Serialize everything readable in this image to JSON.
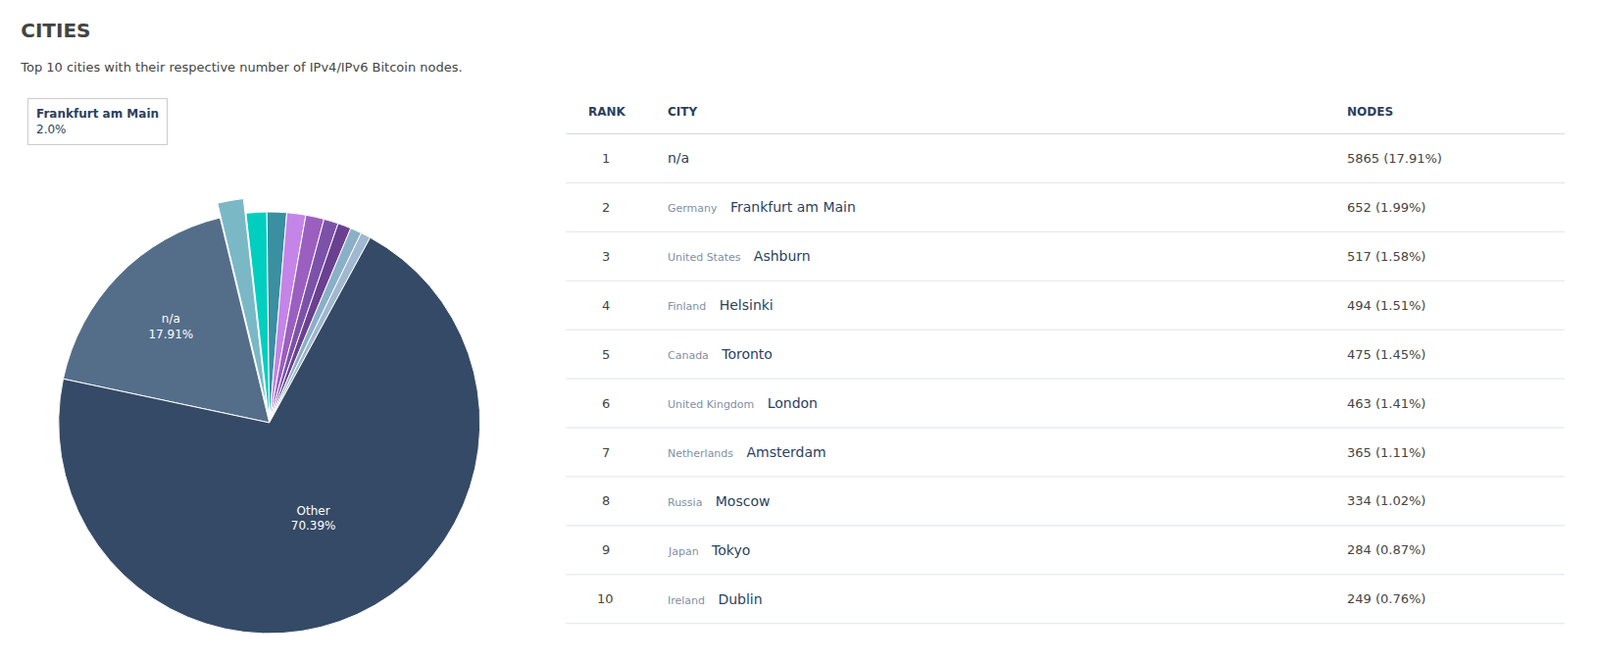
{
  "chart_data": [
    {
      "type": "pie",
      "title": "CITIES",
      "subtitle": "Top 10 cities with their respective number of IPv4/IPv6 Bitcoin nodes.",
      "categories": [
        "n/a",
        "Frankfurt am Main",
        "Ashburn",
        "Helsinki",
        "Toronto",
        "London",
        "Amsterdam",
        "Moscow",
        "Tokyo",
        "Dublin",
        "Other"
      ],
      "values": [
        17.91,
        1.99,
        1.58,
        1.51,
        1.45,
        1.41,
        1.11,
        1.02,
        0.87,
        0.76,
        70.39
      ],
      "value_labels": [
        "17.91%",
        null,
        null,
        null,
        null,
        null,
        null,
        null,
        null,
        null,
        "70.39%"
      ],
      "colors": [
        "#546e8a",
        "#7ab8c6",
        "#00cfc0",
        "#3a8fa0",
        "#c484e8",
        "#9b5fc0",
        "#7b52a8",
        "#6a4090",
        "#8ab0c8",
        "#a0b8d0",
        "#354a66"
      ],
      "annotations": [
        {
          "label": "Frankfurt am Main",
          "text": "2.0%"
        }
      ]
    },
    {
      "type": "table",
      "columns": [
        "RANK",
        "CITY",
        "NODES"
      ],
      "rows": [
        {
          "rank": 1,
          "country": null,
          "city": "n/a",
          "nodes": "5865 (17.91%)"
        },
        {
          "rank": 2,
          "country": "Germany",
          "city": "Frankfurt am Main",
          "nodes": "652 (1.99%)"
        },
        {
          "rank": 3,
          "country": "United States",
          "city": "Ashburn",
          "nodes": "517 (1.58%)"
        },
        {
          "rank": 4,
          "country": "Finland",
          "city": "Helsinki",
          "nodes": "494 (1.51%)"
        },
        {
          "rank": 5,
          "country": "Canada",
          "city": "Toronto",
          "nodes": "475 (1.45%)"
        },
        {
          "rank": 6,
          "country": "United Kingdom",
          "city": "London",
          "nodes": "463 (1.41%)"
        },
        {
          "rank": 7,
          "country": "Netherlands",
          "city": "Amsterdam",
          "nodes": "365 (1.11%)"
        },
        {
          "rank": 8,
          "country": "Russia",
          "city": "Moscow",
          "nodes": "334 (1.02%)"
        },
        {
          "rank": 9,
          "country": "Japan",
          "city": "Tokyo",
          "nodes": "284 (0.87%)"
        },
        {
          "rank": 10,
          "country": "Ireland",
          "city": "Dublin",
          "nodes": "249 (0.76%)"
        }
      ]
    }
  ]
}
